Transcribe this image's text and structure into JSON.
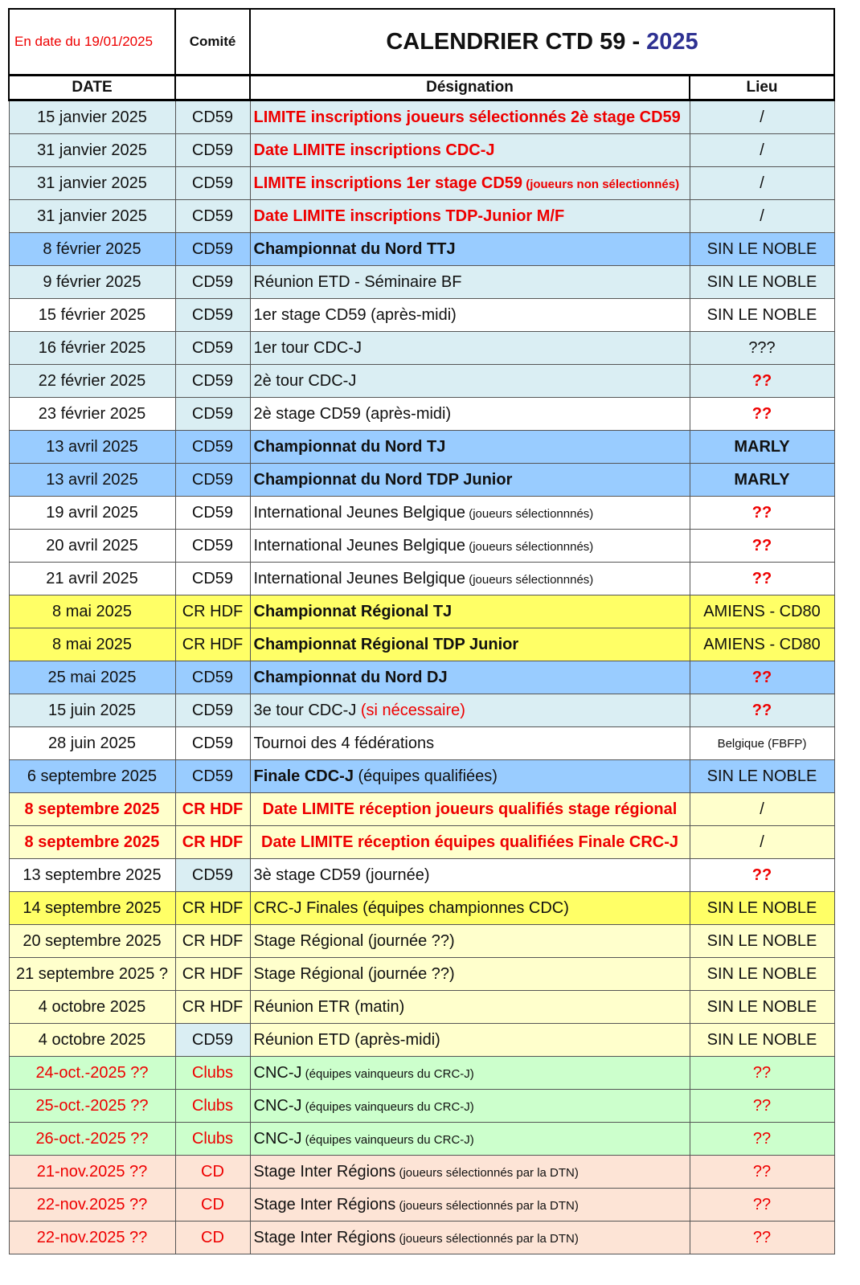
{
  "header": {
    "stamp": "En date du 19/01/2025",
    "comite": "Comité",
    "title": "CALENDRIER CTD 59 - ",
    "title_year": "2025",
    "col_date": "DATE",
    "col_designation": "Désignation",
    "col_lieu": "Lieu"
  },
  "colors": {
    "lightblue": "#daeef3",
    "blue": "#99ccff",
    "yellow": "#ffff66",
    "paleyellow": "#ffffcc",
    "green": "#ccffcc",
    "peach": "#fde4d6",
    "white": "#ffffff",
    "red": "#ee0000",
    "title_blue": "#2e3192"
  },
  "rows": [
    {
      "date": "15 janvier 2025",
      "comite": "CD59",
      "designation": "LIMITE inscriptions joueurs sélectionnés 2è stage CD59",
      "note": "",
      "lieu": "/",
      "bg": "lightblue",
      "dstyle": "boldred"
    },
    {
      "date": "31 janvier 2025",
      "comite": "CD59",
      "designation": "Date LIMITE inscriptions CDC-J",
      "note": "",
      "lieu": "/",
      "bg": "lightblue",
      "dstyle": "boldred"
    },
    {
      "date": "31 janvier 2025",
      "comite": "CD59",
      "designation": "LIMITE inscriptions 1er stage CD59",
      "note": " (joueurs non sélectionnés)",
      "lieu": "/",
      "bg": "lightblue",
      "dstyle": "boldred",
      "nstyle": "smallboldred"
    },
    {
      "date": "31 janvier 2025",
      "comite": "CD59",
      "designation": "Date LIMITE inscriptions TDP-Junior M/F",
      "note": "",
      "lieu": "/",
      "bg": "lightblue",
      "dstyle": "boldred"
    },
    {
      "date": "8 février 2025",
      "comite": "CD59",
      "designation": "Championnat du  Nord TTJ",
      "note": "",
      "lieu": "SIN LE NOBLE",
      "bg": "blue",
      "dstyle": "bold"
    },
    {
      "date": "9 février 2025",
      "comite": "CD59",
      "designation": "Réunion ETD - Séminaire BF",
      "note": "",
      "lieu": "SIN LE NOBLE",
      "bg": "lightblue"
    },
    {
      "date": "15 février 2025",
      "comite": "CD59",
      "designation": "1er stage CD59 (après-midi)",
      "note": "",
      "lieu": "SIN LE NOBLE",
      "bg": "white",
      "cbg": "lightblue"
    },
    {
      "date": "16 février 2025",
      "comite": "CD59",
      "designation": "1er tour CDC-J",
      "note": "",
      "lieu": "???",
      "bg": "lightblue"
    },
    {
      "date": "22 février 2025",
      "comite": "CD59",
      "designation": "2è tour CDC-J",
      "note": "",
      "lieu": "??",
      "bg": "lightblue",
      "lstyle": "boldred"
    },
    {
      "date": "23 février 2025",
      "comite": "CD59",
      "designation": "2è stage CD59 (après-midi)",
      "note": "",
      "lieu": "??",
      "bg": "white",
      "cbg": "lightblue",
      "lstyle": "boldred"
    },
    {
      "date": "13 avril 2025",
      "comite": "CD59",
      "designation": "Championnat du  Nord  TJ",
      "note": "",
      "lieu": "MARLY",
      "bg": "blue",
      "dstyle": "bold",
      "lstyle": "bold"
    },
    {
      "date": "13 avril 2025",
      "comite": "CD59",
      "designation": "Championnat du  Nord  TDP Junior",
      "note": "",
      "lieu": "MARLY",
      "bg": "blue",
      "dstyle": "bold",
      "lstyle": "bold"
    },
    {
      "date": "19 avril 2025",
      "comite": "CD59",
      "designation": "International Jeunes Belgique",
      "note": " (joueurs sélectionnnés)",
      "lieu": "??",
      "bg": "white",
      "nstyle": "small",
      "lstyle": "boldred"
    },
    {
      "date": "20 avril 2025",
      "comite": "CD59",
      "designation": "International Jeunes Belgique",
      "note": " (joueurs sélectionnnés)",
      "lieu": "??",
      "bg": "white",
      "nstyle": "small",
      "lstyle": "boldred"
    },
    {
      "date": "21 avril 2025",
      "comite": "CD59",
      "designation": "International Jeunes Belgique",
      "note": " (joueurs sélectionnnés)",
      "lieu": "??",
      "bg": "white",
      "nstyle": "small",
      "lstyle": "boldred"
    },
    {
      "date": "8 mai 2025",
      "comite": "CR HDF",
      "designation": "Championnat Régional TJ",
      "note": "",
      "lieu": "AMIENS - CD80",
      "bg": "yellow",
      "dstyle": "bold"
    },
    {
      "date": "8 mai 2025",
      "comite": "CR HDF",
      "designation": "Championnat Régional TDP Junior",
      "note": "",
      "lieu": "AMIENS - CD80",
      "bg": "yellow",
      "dstyle": "bold"
    },
    {
      "date": "25 mai 2025",
      "comite": "CD59",
      "designation": "Championnat du  Nord DJ",
      "note": "",
      "lieu": "??",
      "bg": "blue",
      "dstyle": "bold",
      "lstyle": "boldred"
    },
    {
      "date": "15 juin 2025",
      "comite": "CD59",
      "designation": "3e tour CDC-J",
      "note": " (si nécessaire)",
      "lieu": "??",
      "bg": "lightblue",
      "nstyle": "red",
      "lstyle": "boldred"
    },
    {
      "date": "28 juin 2025",
      "comite": "CD59",
      "designation": "Tournoi des 4 fédérations",
      "note": "",
      "lieu": "Belgique (FBFP)",
      "bg": "white",
      "lstyle": "smaller"
    },
    {
      "date": "6 septembre 2025",
      "comite": "CD59",
      "designation": "Finale CDC-J",
      "note": " (équipes qualifiées)",
      "lieu": "SIN LE NOBLE",
      "bg": "blue",
      "dstyle": "bold"
    },
    {
      "date": "8 septembre 2025",
      "comite": "CR HDF",
      "designation": "Date LIMITE réception joueurs qualifiés stage régional",
      "note": "",
      "lieu": "/",
      "bg": "paleyellow",
      "dstyle": "boldredcenter",
      "datestyle": "boldred"
    },
    {
      "date": "8 septembre 2025",
      "comite": "CR HDF",
      "designation": "Date LIMITE réception équipes qualifiées Finale CRC-J",
      "note": "",
      "lieu": "/",
      "bg": "paleyellow",
      "dstyle": "boldredcenter",
      "datestyle": "boldred"
    },
    {
      "date": "13 septembre 2025",
      "comite": "CD59",
      "designation": "3è stage CD59 (journée)",
      "note": "",
      "lieu": "??",
      "bg": "white",
      "cbg": "lightblue",
      "lstyle": "boldred"
    },
    {
      "date": "14 septembre 2025",
      "comite": "CR HDF",
      "designation": "CRC-J Finales (équipes championnes CDC)",
      "note": "",
      "lieu": "SIN LE NOBLE",
      "bg": "yellow"
    },
    {
      "date": "20 septembre 2025",
      "comite": "CR HDF",
      "designation": "Stage Régional (journée ??)",
      "note": "",
      "lieu": "SIN LE NOBLE",
      "bg": "paleyellow"
    },
    {
      "date": "21 septembre 2025 ?",
      "comite": "CR HDF",
      "designation": "Stage Régional (journée ??)",
      "note": "",
      "lieu": "SIN LE NOBLE",
      "bg": "paleyellow"
    },
    {
      "date": "4 octobre 2025",
      "comite": "CR HDF",
      "designation": "Réunion ETR (matin)",
      "note": "",
      "lieu": "SIN LE NOBLE",
      "bg": "paleyellow"
    },
    {
      "date": "4 octobre 2025",
      "comite": "CD59",
      "designation": "Réunion ETD (après-midi)",
      "note": "",
      "lieu": "SIN LE NOBLE",
      "bg": "paleyellow",
      "cbg": "lightblue"
    },
    {
      "date": "24-oct.-2025 ??",
      "comite": "Clubs",
      "designation": "CNC-J",
      "note": " (équipes vainqueurs du CRC-J)",
      "lieu": "??",
      "bg": "green",
      "nstyle": "small",
      "lstyle": "red",
      "datestyle": "red"
    },
    {
      "date": "25-oct.-2025 ??",
      "comite": "Clubs",
      "designation": "CNC-J",
      "note": " (équipes vainqueurs du CRC-J)",
      "lieu": "??",
      "bg": "green",
      "nstyle": "small",
      "lstyle": "red",
      "datestyle": "red"
    },
    {
      "date": "26-oct.-2025 ??",
      "comite": "Clubs",
      "designation": "CNC-J",
      "note": " (équipes vainqueurs du CRC-J)",
      "lieu": "??",
      "bg": "green",
      "nstyle": "small",
      "lstyle": "red",
      "datestyle": "red"
    },
    {
      "date": "21-nov.2025 ??",
      "comite": "CD",
      "designation": "Stage Inter Régions",
      "note": " (joueurs sélectionnés par la DTN)",
      "lieu": "??",
      "bg": "peach",
      "nstyle": "small",
      "lstyle": "red",
      "datestyle": "red"
    },
    {
      "date": "22-nov.2025 ??",
      "comite": "CD",
      "designation": "Stage Inter Régions",
      "note": " (joueurs sélectionnés par la DTN)",
      "lieu": "??",
      "bg": "peach",
      "nstyle": "small",
      "lstyle": "red",
      "datestyle": "red"
    },
    {
      "date": "22-nov.2025 ??",
      "comite": "CD",
      "designation": "Stage Inter Régions",
      "note": " (joueurs sélectionnés par la DTN)",
      "lieu": "??",
      "bg": "peach",
      "nstyle": "small",
      "lstyle": "red",
      "datestyle": "red"
    }
  ]
}
